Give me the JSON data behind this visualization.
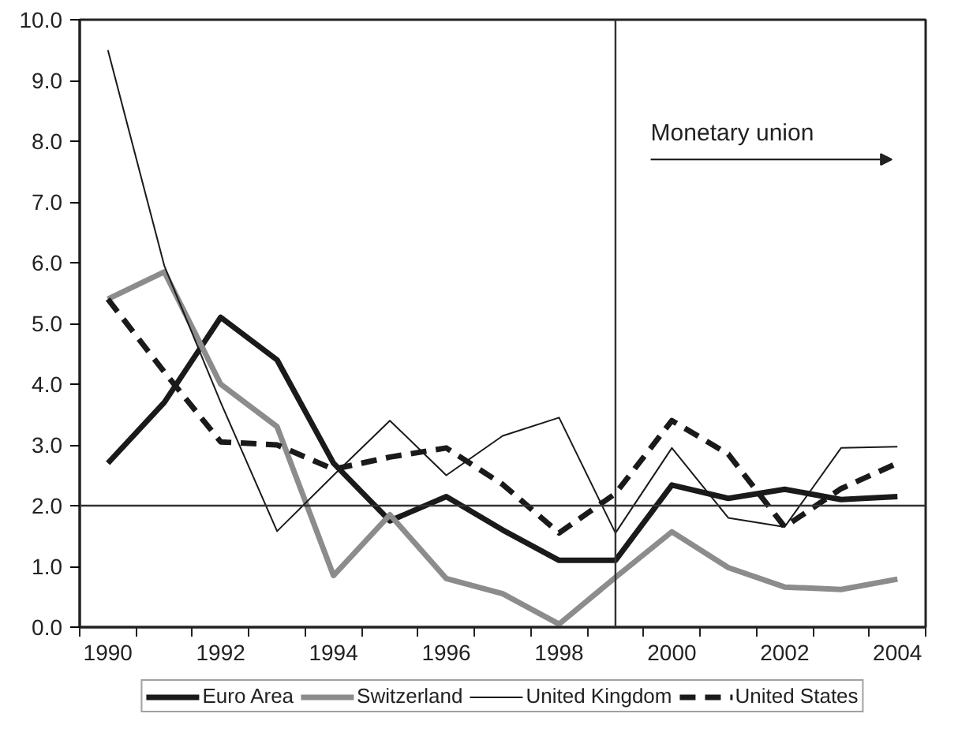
{
  "chart_data": {
    "type": "line",
    "x": [
      1990,
      1991,
      1992,
      1993,
      1994,
      1995,
      1996,
      1997,
      1998,
      1999,
      2000,
      2001,
      2002,
      2003,
      2004
    ],
    "series": [
      {
        "name": "Euro Area",
        "color": "#1a1a1a",
        "line_style": "solid",
        "values": [
          2.7,
          3.7,
          5.1,
          4.4,
          2.7,
          1.75,
          2.15,
          1.6,
          1.1,
          1.1,
          2.34,
          2.12,
          2.27,
          2.1,
          2.15
        ]
      },
      {
        "name": "Switzerland",
        "color": "#8c8c8c",
        "line_style": "solid",
        "values": [
          5.4,
          5.85,
          4.0,
          3.3,
          0.85,
          1.85,
          0.8,
          0.55,
          0.05,
          0.82,
          1.57,
          0.98,
          0.66,
          0.62,
          0.79
        ]
      },
      {
        "name": "United Kingdom",
        "color": "#1a1a1a",
        "line_style": "solid",
        "values": [
          9.5,
          5.95,
          3.7,
          1.58,
          2.5,
          3.4,
          2.5,
          3.15,
          3.45,
          1.55,
          2.95,
          1.8,
          1.65,
          2.95,
          2.97
        ]
      },
      {
        "name": "United States",
        "color": "#1a1a1a",
        "line_style": "dashed",
        "values": [
          5.4,
          4.2,
          3.05,
          3.0,
          2.6,
          2.8,
          2.95,
          2.35,
          1.55,
          2.2,
          3.4,
          2.85,
          1.65,
          2.28,
          2.7
        ]
      }
    ],
    "xlim": [
      1989.5,
      2004.5
    ],
    "xticks": [
      {
        "value": 1989.5,
        "label": null
      },
      {
        "value": 1990,
        "label": "1990"
      },
      {
        "value": 1990.5,
        "label": null
      },
      {
        "value": 1991.5,
        "label": null
      },
      {
        "value": 1992,
        "label": "1992"
      },
      {
        "value": 1992.5,
        "label": null
      },
      {
        "value": 1993.5,
        "label": null
      },
      {
        "value": 1994,
        "label": "1994"
      },
      {
        "value": 1994.5,
        "label": null
      },
      {
        "value": 1995.5,
        "label": null
      },
      {
        "value": 1996,
        "label": "1996"
      },
      {
        "value": 1996.5,
        "label": null
      },
      {
        "value": 1997.5,
        "label": null
      },
      {
        "value": 1998,
        "label": "1998"
      },
      {
        "value": 1998.5,
        "label": null
      },
      {
        "value": 1999.5,
        "label": null
      },
      {
        "value": 2000,
        "label": "2000"
      },
      {
        "value": 2000.5,
        "label": null
      },
      {
        "value": 2001.5,
        "label": null
      },
      {
        "value": 2002,
        "label": "2002"
      },
      {
        "value": 2002.5,
        "label": null
      },
      {
        "value": 2003.5,
        "label": null
      },
      {
        "value": 2004,
        "label": "2004"
      },
      {
        "value": 2004.5,
        "label": null
      }
    ],
    "ylim": [
      0,
      10
    ],
    "yticks": [
      {
        "value": 0,
        "label": "0.0"
      },
      {
        "value": 1,
        "label": "1.0"
      },
      {
        "value": 2,
        "label": "2.0"
      },
      {
        "value": 3,
        "label": "3.0"
      },
      {
        "value": 4,
        "label": "4.0"
      },
      {
        "value": 5,
        "label": "5.0"
      },
      {
        "value": 6,
        "label": "6.0"
      },
      {
        "value": 7,
        "label": "7.0"
      },
      {
        "value": 8,
        "label": "8.0"
      },
      {
        "value": 9,
        "label": "9.0"
      },
      {
        "value": 10,
        "label": "10.0"
      }
    ],
    "ref_lines": [
      {
        "axis": "y",
        "value": 2,
        "label": null,
        "color": "#333333"
      },
      {
        "axis": "x",
        "value": 1999,
        "label": null,
        "color": "#333333"
      }
    ],
    "annotations": [
      "Monetary union"
    ],
    "grid": false,
    "legend": "bottom",
    "marker": "none"
  }
}
